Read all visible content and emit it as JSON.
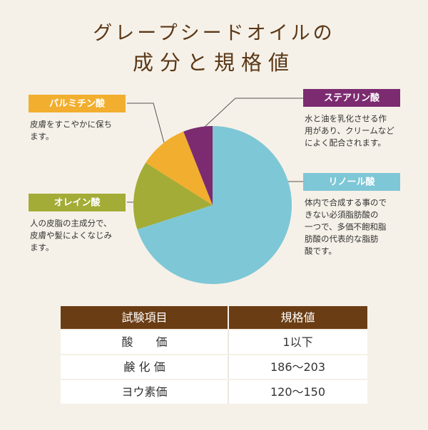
{
  "title": [
    "グレープシードオイルの",
    "成分と規格値"
  ],
  "chart_data": {
    "type": "pie",
    "categories": [
      "リノール酸",
      "オレイン酸",
      "パルミチン酸",
      "ステアリン酸"
    ],
    "values": [
      70,
      14,
      10,
      6
    ],
    "colors": [
      "#7ec7d6",
      "#a3ac36",
      "#f2ae2e",
      "#7c2b70"
    ]
  },
  "callouts": [
    {
      "lines": [
        "体内で合成する事ので",
        "きない必須脂肪酸の",
        "一つで、多価不飽和脂",
        "肪酸の代表的な脂肪",
        "酸です。"
      ]
    },
    {
      "lines": [
        "人の皮脂の主成分で、",
        "皮膚や髪によくなじみ",
        "ます。"
      ]
    },
    {
      "lines": [
        "皮膚をすこやかに保ち",
        "ます。"
      ]
    },
    {
      "lines": [
        "水と油を乳化させる作",
        "用があり、クリームなど",
        "によく配合されます。"
      ]
    }
  ],
  "table": {
    "header": [
      "試験項目",
      "規格値"
    ],
    "rows": [
      [
        "酸　　価",
        "1以下"
      ],
      [
        "鹸 化 価",
        "186〜203"
      ],
      [
        "ヨウ素価",
        "120〜150"
      ]
    ]
  }
}
